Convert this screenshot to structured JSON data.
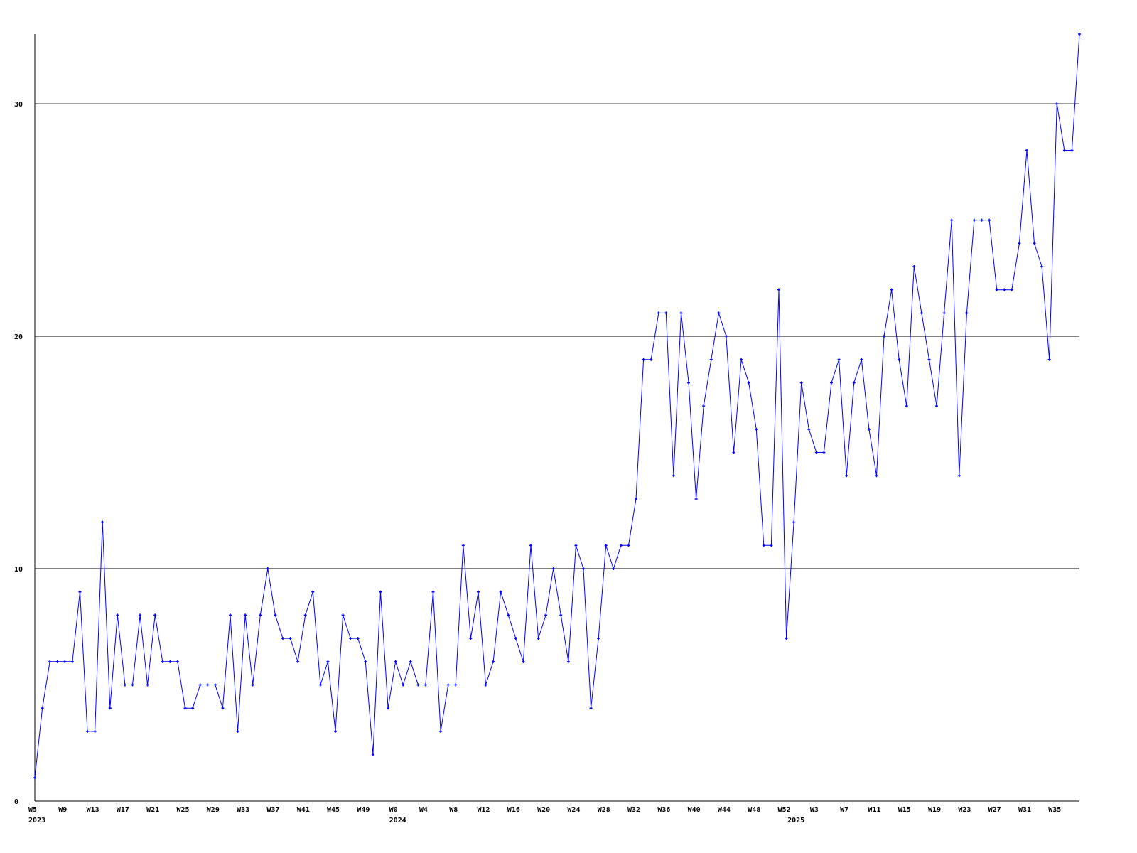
{
  "chart_data": {
    "type": "line",
    "title": "",
    "xlabel": "",
    "ylabel": "",
    "ylim": [
      0,
      33
    ],
    "grid": "horizontal",
    "legend": "none",
    "colors": {
      "line": "#0000ff",
      "grid": "#000000",
      "axis": "#000000",
      "background": "#ffffff"
    },
    "y_ticks": [
      "0",
      "10",
      "20",
      "30"
    ],
    "series": [
      {
        "segments": [
          {
            "year": "2023",
            "start_week": 5,
            "values": [
              1,
              4,
              6,
              6,
              6,
              6,
              9,
              3,
              3,
              12,
              4,
              8,
              5,
              5,
              8,
              5,
              8,
              6,
              6,
              6,
              4,
              4,
              5,
              5,
              5,
              4,
              8,
              3,
              8,
              5,
              8,
              10,
              8,
              7,
              7,
              6,
              8,
              9,
              5,
              6,
              3,
              8,
              7,
              7,
              6,
              2,
              9,
              4
            ]
          },
          {
            "year": "2024",
            "start_week": 0,
            "values": [
              6,
              5,
              6,
              5,
              5,
              9,
              3,
              5,
              5,
              11,
              7,
              9,
              5,
              6,
              9,
              8,
              7,
              6,
              11,
              7,
              8,
              10,
              8,
              6,
              11,
              10,
              4,
              7,
              11,
              10,
              11,
              11,
              13,
              19,
              19,
              21,
              21,
              14,
              21,
              18,
              13,
              17,
              19,
              21,
              20,
              15,
              19,
              18,
              16,
              11,
              11,
              22,
              7
            ]
          },
          {
            "year": "2025",
            "start_week": 0,
            "values": [
              12,
              18,
              16,
              15,
              15,
              18,
              19,
              14,
              18,
              19,
              16,
              14,
              20,
              22,
              19,
              17,
              23,
              21,
              19,
              17,
              21,
              25,
              14,
              21,
              25,
              25,
              25,
              22,
              22,
              22,
              24,
              28,
              24,
              23,
              19,
              30,
              28,
              28,
              33
            ]
          }
        ]
      }
    ],
    "x_ticks": [
      {
        "year": "2023",
        "week_labels": [
          "W5",
          "W9",
          "W13",
          "W17",
          "W21",
          "W25",
          "W29",
          "W33",
          "W37",
          "W41",
          "W45",
          "W49"
        ]
      },
      {
        "year": "2024",
        "week_labels": [
          "W0",
          "W4",
          "W8",
          "W12",
          "W16",
          "W20",
          "W24",
          "W28",
          "W32",
          "W36",
          "W40",
          "W44",
          "W48",
          "W52"
        ]
      },
      {
        "year": "2025",
        "week_labels": [
          "W3",
          "W7",
          "W11",
          "W15",
          "W19",
          "W23",
          "W27",
          "W31",
          "W35"
        ]
      }
    ],
    "year_labels": [
      "2023",
      "2024",
      "2025"
    ]
  }
}
